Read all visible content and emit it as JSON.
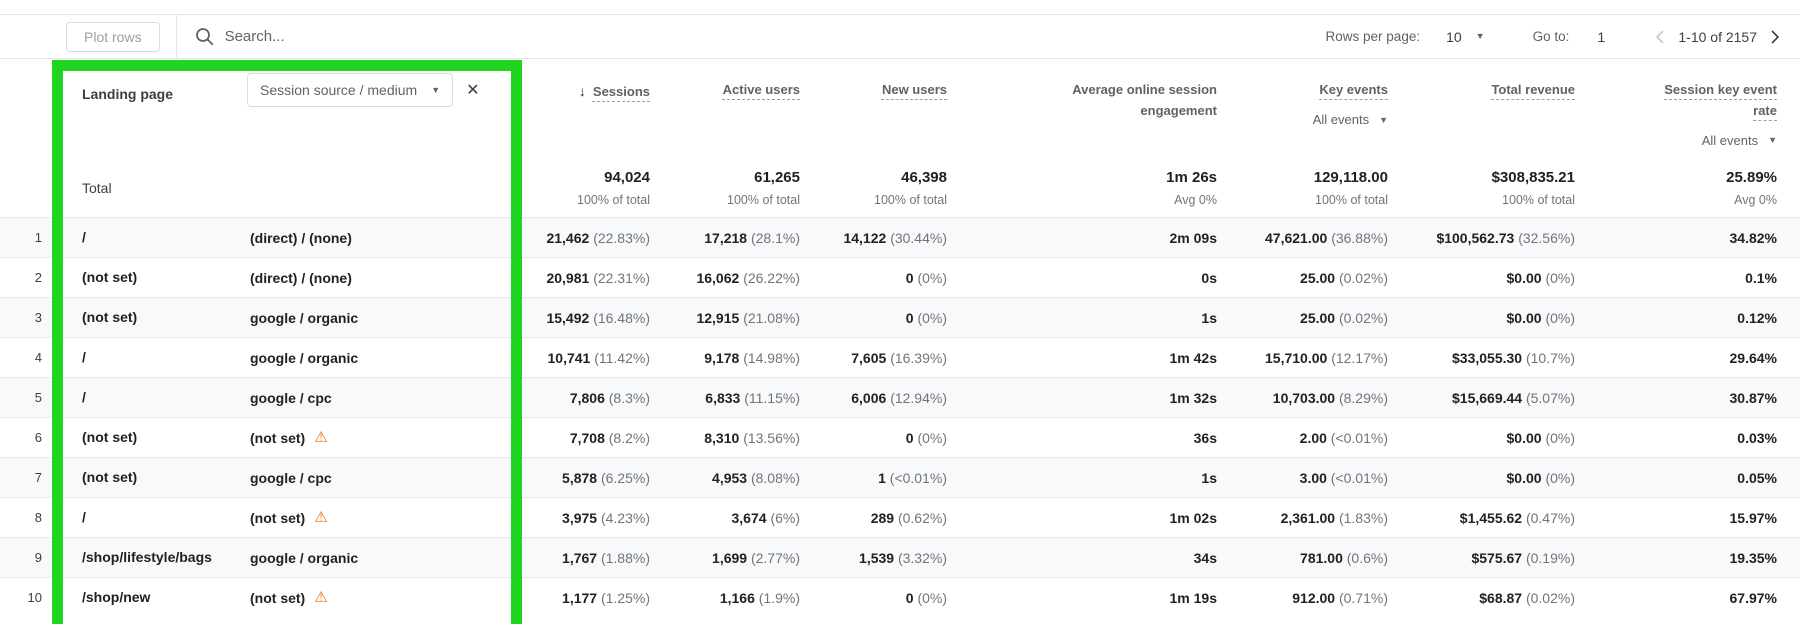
{
  "toolbar": {
    "plot_rows_label": "Plot rows",
    "search_placeholder": "Search...",
    "rows_per_page_label": "Rows per page:",
    "rows_per_page_value": "10",
    "goto_label": "Go to:",
    "goto_value": "1",
    "pagination_range": "1-10 of 2157"
  },
  "icons": {
    "warning": "⚠",
    "caret_down": "▼",
    "close": "✕",
    "sort_descending": "↓"
  },
  "annotation": {
    "color": "#22d422"
  },
  "table": {
    "dimension_header": "Landing page",
    "secondary_dimension": "Session source / medium",
    "columns": [
      {
        "key": "sessions",
        "label": "Sessions",
        "sorted": true,
        "underline": true
      },
      {
        "key": "active-users",
        "label": "Active users",
        "underline": true
      },
      {
        "key": "new-users",
        "label": "New users",
        "underline": true
      },
      {
        "key": "avg-session-engagement",
        "label": "Average online session engagement",
        "underline": false
      },
      {
        "key": "key-events",
        "label": "Key events",
        "underline": true,
        "sub": "All events"
      },
      {
        "key": "total-revenue",
        "label": "Total revenue",
        "underline": true
      },
      {
        "key": "session-key-event-rate",
        "label": "Session key event rate",
        "underline": true,
        "sub": "All events"
      }
    ],
    "totals": {
      "label": "Total",
      "cells": [
        {
          "value": "94,024",
          "sub": "100% of total"
        },
        {
          "value": "61,265",
          "sub": "100% of total"
        },
        {
          "value": "46,398",
          "sub": "100% of total"
        },
        {
          "value": "1m 26s",
          "sub": "Avg 0%"
        },
        {
          "value": "129,118.00",
          "sub": "100% of total"
        },
        {
          "value": "$308,835.21",
          "sub": "100% of total"
        },
        {
          "value": "25.89%",
          "sub": "Avg 0%"
        }
      ]
    },
    "rows": [
      {
        "num": "1",
        "landing_page": "/",
        "source_medium": "(direct) / (none)",
        "warning": false,
        "cells": [
          [
            "21,462",
            "22.83%"
          ],
          [
            "17,218",
            "28.1%"
          ],
          [
            "14,122",
            "30.44%"
          ],
          [
            "2m 09s"
          ],
          [
            "47,621.00",
            "36.88%"
          ],
          [
            "$100,562.73",
            "32.56%"
          ],
          [
            "34.82%"
          ]
        ]
      },
      {
        "num": "2",
        "landing_page": "(not set)",
        "source_medium": "(direct) / (none)",
        "warning": false,
        "cells": [
          [
            "20,981",
            "22.31%"
          ],
          [
            "16,062",
            "26.22%"
          ],
          [
            "0",
            "0%"
          ],
          [
            "0s"
          ],
          [
            "25.00",
            "0.02%"
          ],
          [
            "$0.00",
            "0%"
          ],
          [
            "0.1%"
          ]
        ]
      },
      {
        "num": "3",
        "landing_page": "(not set)",
        "source_medium": "google / organic",
        "warning": false,
        "cells": [
          [
            "15,492",
            "16.48%"
          ],
          [
            "12,915",
            "21.08%"
          ],
          [
            "0",
            "0%"
          ],
          [
            "1s"
          ],
          [
            "25.00",
            "0.02%"
          ],
          [
            "$0.00",
            "0%"
          ],
          [
            "0.12%"
          ]
        ]
      },
      {
        "num": "4",
        "landing_page": "/",
        "source_medium": "google / organic",
        "warning": false,
        "cells": [
          [
            "10,741",
            "11.42%"
          ],
          [
            "9,178",
            "14.98%"
          ],
          [
            "7,605",
            "16.39%"
          ],
          [
            "1m 42s"
          ],
          [
            "15,710.00",
            "12.17%"
          ],
          [
            "$33,055.30",
            "10.7%"
          ],
          [
            "29.64%"
          ]
        ]
      },
      {
        "num": "5",
        "landing_page": "/",
        "source_medium": "google / cpc",
        "warning": false,
        "cells": [
          [
            "7,806",
            "8.3%"
          ],
          [
            "6,833",
            "11.15%"
          ],
          [
            "6,006",
            "12.94%"
          ],
          [
            "1m 32s"
          ],
          [
            "10,703.00",
            "8.29%"
          ],
          [
            "$15,669.44",
            "5.07%"
          ],
          [
            "30.87%"
          ]
        ]
      },
      {
        "num": "6",
        "landing_page": "(not set)",
        "source_medium": "(not set)",
        "warning": true,
        "cells": [
          [
            "7,708",
            "8.2%"
          ],
          [
            "8,310",
            "13.56%"
          ],
          [
            "0",
            "0%"
          ],
          [
            "36s"
          ],
          [
            "2.00",
            "<0.01%"
          ],
          [
            "$0.00",
            "0%"
          ],
          [
            "0.03%"
          ]
        ]
      },
      {
        "num": "7",
        "landing_page": "(not set)",
        "source_medium": "google / cpc",
        "warning": false,
        "cells": [
          [
            "5,878",
            "6.25%"
          ],
          [
            "4,953",
            "8.08%"
          ],
          [
            "1",
            "<0.01%"
          ],
          [
            "1s"
          ],
          [
            "3.00",
            "<0.01%"
          ],
          [
            "$0.00",
            "0%"
          ],
          [
            "0.05%"
          ]
        ]
      },
      {
        "num": "8",
        "landing_page": "/",
        "source_medium": "(not set)",
        "warning": true,
        "cells": [
          [
            "3,975",
            "4.23%"
          ],
          [
            "3,674",
            "6%"
          ],
          [
            "289",
            "0.62%"
          ],
          [
            "1m 02s"
          ],
          [
            "2,361.00",
            "1.83%"
          ],
          [
            "$1,455.62",
            "0.47%"
          ],
          [
            "15.97%"
          ]
        ]
      },
      {
        "num": "9",
        "landing_page": "/shop/lifestyle/bags",
        "source_medium": "google / organic",
        "warning": false,
        "cells": [
          [
            "1,767",
            "1.88%"
          ],
          [
            "1,699",
            "2.77%"
          ],
          [
            "1,539",
            "3.32%"
          ],
          [
            "34s"
          ],
          [
            "781.00",
            "0.6%"
          ],
          [
            "$575.67",
            "0.19%"
          ],
          [
            "19.35%"
          ]
        ]
      },
      {
        "num": "10",
        "landing_page": "/shop/new",
        "source_medium": "(not set)",
        "warning": true,
        "cells": [
          [
            "1,177",
            "1.25%"
          ],
          [
            "1,166",
            "1.9%"
          ],
          [
            "0",
            "0%"
          ],
          [
            "1m 19s"
          ],
          [
            "912.00",
            "0.71%"
          ],
          [
            "$68.87",
            "0.02%"
          ],
          [
            "67.97%"
          ]
        ]
      }
    ]
  }
}
